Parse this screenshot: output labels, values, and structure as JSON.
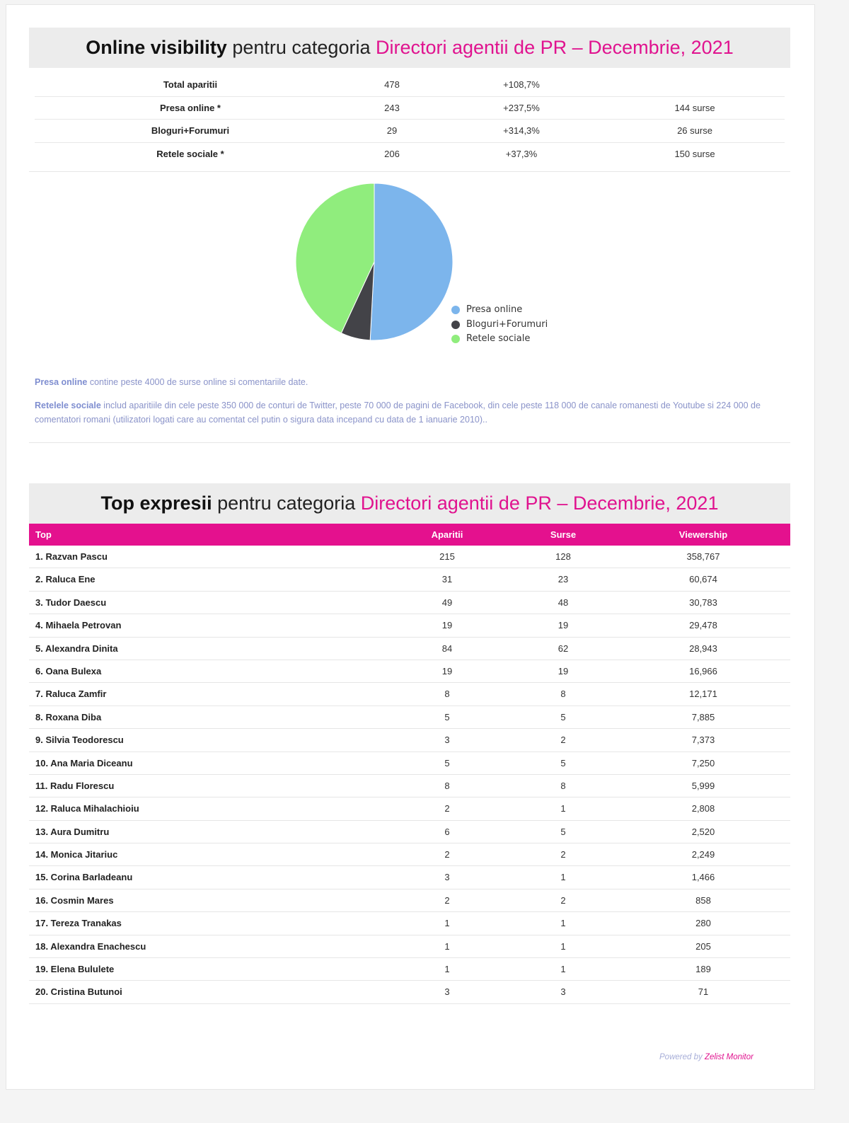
{
  "visibility": {
    "title_bold": "Online visibility",
    "title_mid": " pentru categoria ",
    "title_pink": "Directori agentii de PR – Decembrie, 2021",
    "rows": [
      {
        "label": "Total aparitii",
        "value": "478",
        "change": "+108,7%",
        "sources": ""
      },
      {
        "label": "Presa online *",
        "value": "243",
        "change": "+237,5%",
        "sources": "144 surse"
      },
      {
        "label": "Bloguri+Forumuri",
        "value": "29",
        "change": "+314,3%",
        "sources": "26 surse"
      },
      {
        "label": "Retele sociale *",
        "value": "206",
        "change": "+37,3%",
        "sources": "150 surse"
      }
    ]
  },
  "pie": {
    "slices": [
      {
        "name": "Presa online",
        "value": 243,
        "color": "#7cb5ec"
      },
      {
        "name": "Bloguri+Forumuri",
        "value": 29,
        "color": "#434348"
      },
      {
        "name": "Retele sociale",
        "value": 206,
        "color": "#90ed7d"
      }
    ]
  },
  "notes": {
    "n1_bold": "Presa online",
    "n1_text": " contine peste 4000 de surse online si comentariile date.",
    "n2_bold": "Retelele sociale",
    "n2_text": " includ aparitiile din cele peste 350 000 de conturi de Twitter, peste 70 000 de pagini de Facebook, din cele peste 118 000 de canale romanesti de Youtube si 224 000 de comentatori romani (utilizatori logati care au comentat cel putin o sigura data incepand cu data de 1 ianuarie 2010).."
  },
  "top": {
    "title_bold": "Top expresii",
    "title_mid": " pentru categoria ",
    "title_pink": "Directori agentii de PR – Decembrie, 2021",
    "headers": {
      "top": "Top",
      "aparitii": "Aparitii",
      "surse": "Surse",
      "viewership": "Viewership"
    },
    "rows": [
      {
        "name": "1. Razvan Pascu",
        "aparitii": "215",
        "surse": "128",
        "viewership": "358,767"
      },
      {
        "name": "2. Raluca Ene",
        "aparitii": "31",
        "surse": "23",
        "viewership": "60,674"
      },
      {
        "name": "3. Tudor Daescu",
        "aparitii": "49",
        "surse": "48",
        "viewership": "30,783"
      },
      {
        "name": "4. Mihaela Petrovan",
        "aparitii": "19",
        "surse": "19",
        "viewership": "29,478"
      },
      {
        "name": "5. Alexandra Dinita",
        "aparitii": "84",
        "surse": "62",
        "viewership": "28,943"
      },
      {
        "name": "6. Oana Bulexa",
        "aparitii": "19",
        "surse": "19",
        "viewership": "16,966"
      },
      {
        "name": "7. Raluca Zamfir",
        "aparitii": "8",
        "surse": "8",
        "viewership": "12,171"
      },
      {
        "name": "8. Roxana Diba",
        "aparitii": "5",
        "surse": "5",
        "viewership": "7,885"
      },
      {
        "name": "9. Silvia Teodorescu",
        "aparitii": "3",
        "surse": "2",
        "viewership": "7,373"
      },
      {
        "name": "10. Ana Maria Diceanu",
        "aparitii": "5",
        "surse": "5",
        "viewership": "7,250"
      },
      {
        "name": "11. Radu Florescu",
        "aparitii": "8",
        "surse": "8",
        "viewership": "5,999"
      },
      {
        "name": "12. Raluca Mihalachioiu",
        "aparitii": "2",
        "surse": "1",
        "viewership": "2,808"
      },
      {
        "name": "13. Aura Dumitru",
        "aparitii": "6",
        "surse": "5",
        "viewership": "2,520"
      },
      {
        "name": "14. Monica Jitariuc",
        "aparitii": "2",
        "surse": "2",
        "viewership": "2,249"
      },
      {
        "name": "15. Corina Barladeanu",
        "aparitii": "3",
        "surse": "1",
        "viewership": "1,466"
      },
      {
        "name": "16. Cosmin Mares",
        "aparitii": "2",
        "surse": "2",
        "viewership": "858"
      },
      {
        "name": "17. Tereza Tranakas",
        "aparitii": "1",
        "surse": "1",
        "viewership": "280"
      },
      {
        "name": "18. Alexandra Enachescu",
        "aparitii": "1",
        "surse": "1",
        "viewership": "205"
      },
      {
        "name": "19. Elena Bululete",
        "aparitii": "1",
        "surse": "1",
        "viewership": "189"
      },
      {
        "name": "20. Cristina Butunoi",
        "aparitii": "3",
        "surse": "3",
        "viewership": "71"
      }
    ]
  },
  "footer": {
    "powered_prefix": "Powered by ",
    "powered_brand": "Zelist Monitor"
  }
}
